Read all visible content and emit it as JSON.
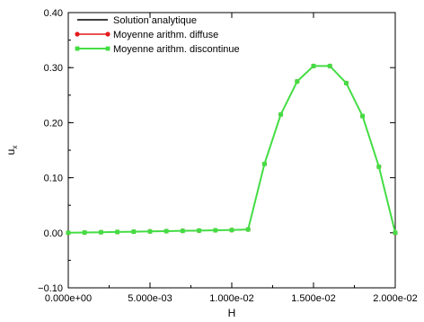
{
  "chart_data": {
    "type": "line",
    "xlabel": "H",
    "ylabel": "u",
    "ylabel_sub": "x",
    "xlim": [
      0.0,
      0.02
    ],
    "ylim": [
      -0.1,
      0.4
    ],
    "x_ticks": [
      0.0,
      0.005,
      0.01,
      0.015,
      0.02
    ],
    "x_tick_labels": [
      "0.000e+00",
      "5.000e-03",
      "1.000e-02",
      "1.500e-02",
      "2.000e-02"
    ],
    "y_ticks": [
      -0.1,
      0.0,
      0.1,
      0.2,
      0.3,
      0.4
    ],
    "y_tick_labels": [
      "−0.10",
      "0.00",
      "0.10",
      "0.20",
      "0.30",
      "0.40"
    ],
    "grid": false,
    "legend_position": "top-left",
    "x": [
      0.0,
      0.001,
      0.002,
      0.003,
      0.004,
      0.005,
      0.006,
      0.007,
      0.008,
      0.009,
      0.01,
      0.011,
      0.012,
      0.013,
      0.014,
      0.015,
      0.016,
      0.017,
      0.018,
      0.019,
      0.02
    ],
    "series": [
      {
        "name": "Solution analytique",
        "color": "#000000",
        "marker": "none",
        "values": [
          0.0,
          0.0005,
          0.001,
          0.0015,
          0.002,
          0.0025,
          0.003,
          0.0035,
          0.004,
          0.0045,
          0.005,
          0.006,
          0.125,
          0.215,
          0.275,
          0.303,
          0.303,
          0.272,
          0.212,
          0.12,
          0.0
        ]
      },
      {
        "name": "Moyenne arithm. diffuse",
        "color": "#e41a1c",
        "marker": "circle",
        "values": [
          0.0,
          0.0005,
          0.001,
          0.0015,
          0.002,
          0.0025,
          0.003,
          0.0035,
          0.004,
          0.0045,
          0.005,
          0.006,
          0.125,
          0.215,
          0.275,
          0.303,
          0.303,
          0.272,
          0.212,
          0.12,
          0.0
        ]
      },
      {
        "name": "Moyenne arithm. discontinue",
        "color": "#44dd44",
        "marker": "square",
        "values": [
          0.0,
          0.0005,
          0.001,
          0.0015,
          0.002,
          0.0025,
          0.003,
          0.0035,
          0.004,
          0.0045,
          0.005,
          0.006,
          0.125,
          0.215,
          0.275,
          0.303,
          0.303,
          0.272,
          0.212,
          0.12,
          0.0
        ]
      }
    ]
  }
}
